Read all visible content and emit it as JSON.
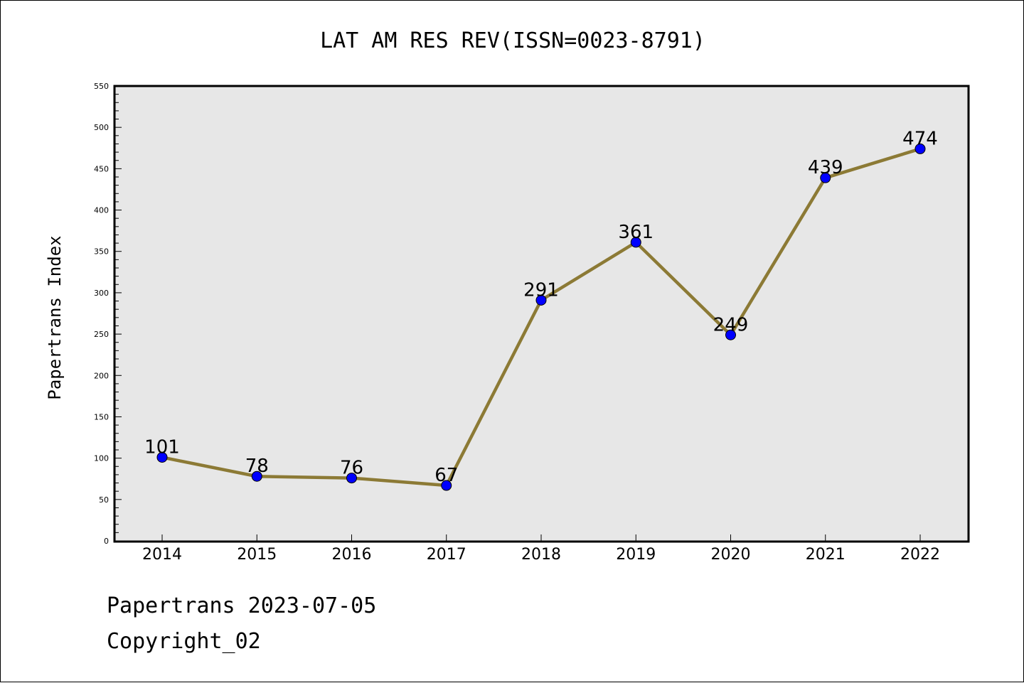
{
  "chart_data": {
    "type": "line",
    "title": "LAT AM RES REV(ISSN=0023-8791)",
    "xlabel": "",
    "ylabel": "Papertrans Index",
    "categories": [
      "2014",
      "2015",
      "2016",
      "2017",
      "2018",
      "2019",
      "2020",
      "2021",
      "2022"
    ],
    "series": [
      {
        "values": [
          101,
          78,
          76,
          67,
          291,
          361,
          249,
          439,
          474
        ]
      }
    ],
    "ylim": [
      0,
      550
    ],
    "yticks": [
      0,
      50,
      100,
      150,
      200,
      250,
      300,
      350,
      400,
      450,
      500,
      550
    ],
    "grid": false,
    "colors": {
      "line": "#8c7a35",
      "marker": "#0000ff",
      "plot_bg": "#e7e7e7"
    }
  },
  "footer": {
    "line1": "Papertrans 2023-07-05",
    "line2": "Copyright_02"
  }
}
